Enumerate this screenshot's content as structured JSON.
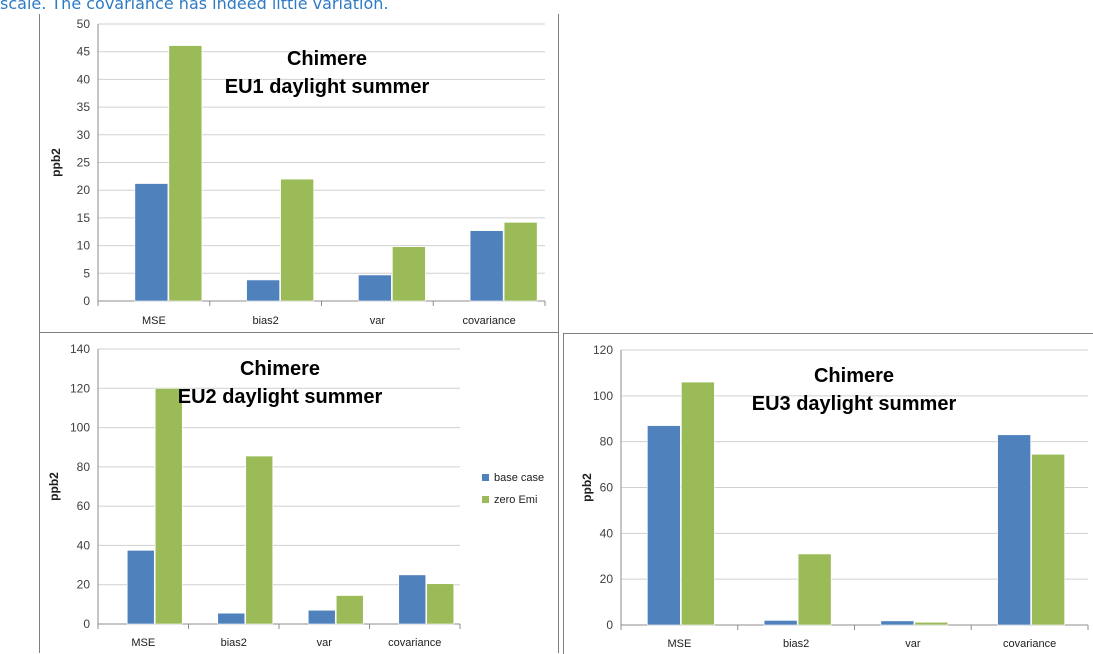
{
  "caption": "scale. The covariance has indeed little variation.",
  "colors": {
    "base": "#4f81bd",
    "zero": "#9bbb59",
    "grid": "#d0d0d0",
    "axis": "#8c8c8c"
  },
  "chart_data": [
    {
      "type": "bar",
      "title_lines": [
        "Chimere",
        "EU1 daylight summer"
      ],
      "ylabel": "ppb2",
      "categories": [
        "MSE",
        "bias2",
        "var",
        "covariance"
      ],
      "yticks": [
        "0",
        "5",
        "10",
        "15",
        "20",
        "25",
        "30",
        "35",
        "40",
        "45",
        "50"
      ],
      "ylim": [
        0,
        50
      ],
      "grid": true,
      "series": [
        {
          "name": "base case",
          "values": [
            21.2,
            3.8,
            4.7,
            12.7
          ]
        },
        {
          "name": "zero Emi",
          "values": [
            46.1,
            22.0,
            9.8,
            14.2
          ]
        }
      ]
    },
    {
      "type": "bar",
      "title_lines": [
        "Chimere",
        "EU2 daylight summer"
      ],
      "ylabel": "ppb2",
      "categories": [
        "MSE",
        "bias2",
        "var",
        "covariance"
      ],
      "yticks": [
        "0",
        "20",
        "40",
        "60",
        "80",
        "100",
        "120",
        "140"
      ],
      "ylim": [
        0,
        140
      ],
      "grid": true,
      "legend_position": "right",
      "series": [
        {
          "name": "base case",
          "values": [
            37.5,
            5.5,
            7.0,
            25.0
          ]
        },
        {
          "name": "zero Emi",
          "values": [
            120.0,
            85.5,
            14.5,
            20.5
          ]
        }
      ]
    },
    {
      "type": "bar",
      "title_lines": [
        "Chimere",
        "EU3 daylight summer"
      ],
      "ylabel": "ppb2",
      "categories": [
        "MSE",
        "bias2",
        "var",
        "covariance"
      ],
      "yticks": [
        "0",
        "20",
        "40",
        "60",
        "80",
        "100",
        "120"
      ],
      "ylim": [
        0,
        120
      ],
      "grid": true,
      "series": [
        {
          "name": "base case",
          "values": [
            87.0,
            2.0,
            1.8,
            83.0
          ]
        },
        {
          "name": "zero Emi",
          "values": [
            106.0,
            31.0,
            1.2,
            74.5
          ]
        }
      ]
    }
  ]
}
